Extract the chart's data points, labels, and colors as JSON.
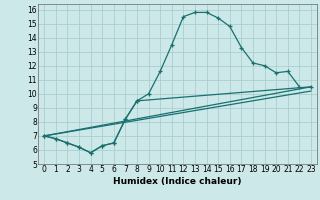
{
  "xlabel": "Humidex (Indice chaleur)",
  "bg_color": "#cce8e8",
  "grid_color": "#aacece",
  "line_color": "#1a7070",
  "xlim": [
    -0.5,
    23.5
  ],
  "ylim": [
    5,
    16.4
  ],
  "xticks": [
    0,
    1,
    2,
    3,
    4,
    5,
    6,
    7,
    8,
    9,
    10,
    11,
    12,
    13,
    14,
    15,
    16,
    17,
    18,
    19,
    20,
    21,
    22,
    23
  ],
  "yticks": [
    5,
    6,
    7,
    8,
    9,
    10,
    11,
    12,
    13,
    14,
    15,
    16
  ],
  "main_curve_x": [
    0,
    1,
    2,
    3,
    4,
    5,
    6,
    7,
    8,
    9,
    10,
    11,
    12,
    13,
    14,
    15,
    16,
    17,
    18,
    19,
    20,
    21,
    22
  ],
  "main_curve_y": [
    7.0,
    6.8,
    6.5,
    6.2,
    5.8,
    6.3,
    6.5,
    8.2,
    9.5,
    10.0,
    11.6,
    13.5,
    15.5,
    15.8,
    15.8,
    15.4,
    14.8,
    13.3,
    12.2,
    12.0,
    11.5,
    11.6,
    10.5
  ],
  "line1_x": [
    0,
    23
  ],
  "line1_y": [
    7.0,
    10.5
  ],
  "line2_x": [
    0,
    23
  ],
  "line2_y": [
    7.0,
    10.2
  ],
  "sub_curve_x": [
    0,
    1,
    2,
    3,
    4,
    5,
    6,
    7,
    8,
    23
  ],
  "sub_curve_y": [
    7.0,
    6.8,
    6.5,
    6.2,
    5.8,
    6.3,
    6.5,
    8.2,
    9.5,
    10.5
  ],
  "xlabel_fontsize": 6.5,
  "tick_fontsize": 5.5
}
